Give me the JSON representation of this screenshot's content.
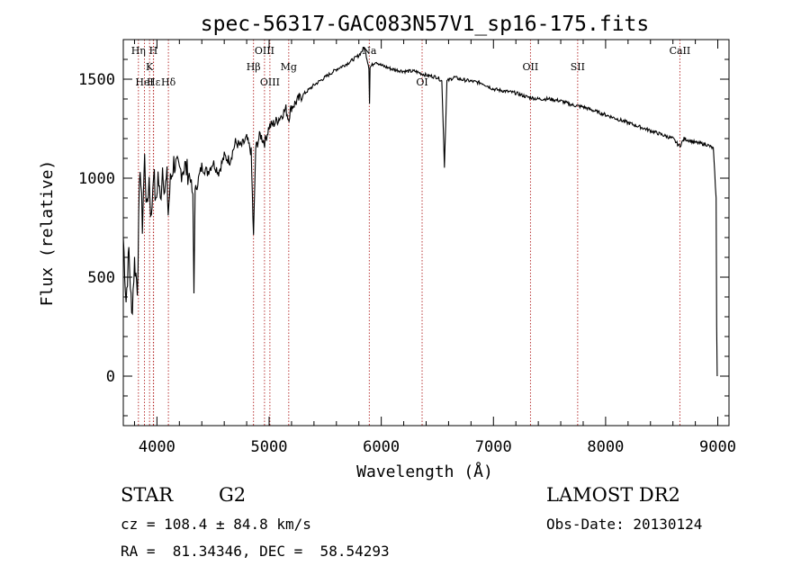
{
  "chart_data": {
    "type": "line",
    "title": "spec-56317-GAC083N57V1_sp16-175.fits",
    "xlabel": "Wavelength (Å)",
    "ylabel": "Flux (relative)",
    "xlim": [
      3700,
      9100
    ],
    "ylim": [
      -250,
      1700
    ],
    "xticks": [
      4000,
      5000,
      6000,
      7000,
      8000,
      9000
    ],
    "yticks": [
      0,
      500,
      1000,
      1500
    ],
    "grid": false,
    "line_color": "#000000",
    "marker_color": "#b22222",
    "series": [
      {
        "points": [
          [
            3700,
            700
          ],
          [
            3725,
            380
          ],
          [
            3750,
            640
          ],
          [
            3775,
            300
          ],
          [
            3800,
            580
          ],
          [
            3825,
            450
          ],
          [
            3850,
            1080
          ],
          [
            3870,
            760
          ],
          [
            3890,
            1100
          ],
          [
            3910,
            830
          ],
          [
            3930,
            1000
          ],
          [
            3950,
            780
          ],
          [
            3970,
            1060
          ],
          [
            3990,
            850
          ],
          [
            4010,
            1020
          ],
          [
            4030,
            880
          ],
          [
            4050,
            1060
          ],
          [
            4070,
            940
          ],
          [
            4090,
            1000
          ],
          [
            4100,
            820
          ],
          [
            4120,
            980
          ],
          [
            4150,
            1080
          ],
          [
            4200,
            1030
          ],
          [
            4250,
            1060
          ],
          [
            4300,
            1000
          ],
          [
            4320,
            900
          ],
          [
            4330,
            420
          ],
          [
            4340,
            930
          ],
          [
            4400,
            1060
          ],
          [
            4450,
            1030
          ],
          [
            4500,
            1080
          ],
          [
            4550,
            1030
          ],
          [
            4600,
            1110
          ],
          [
            4650,
            1090
          ],
          [
            4700,
            1180
          ],
          [
            4750,
            1160
          ],
          [
            4800,
            1200
          ],
          [
            4840,
            1130
          ],
          [
            4861,
            700
          ],
          [
            4880,
            1150
          ],
          [
            4920,
            1220
          ],
          [
            4960,
            1180
          ],
          [
            5000,
            1260
          ],
          [
            5050,
            1280
          ],
          [
            5100,
            1310
          ],
          [
            5150,
            1350
          ],
          [
            5172,
            1300
          ],
          [
            5200,
            1360
          ],
          [
            5300,
            1420
          ],
          [
            5400,
            1470
          ],
          [
            5500,
            1510
          ],
          [
            5600,
            1550
          ],
          [
            5700,
            1580
          ],
          [
            5800,
            1620
          ],
          [
            5850,
            1660
          ],
          [
            5890,
            1560
          ],
          [
            5895,
            1380
          ],
          [
            5900,
            1560
          ],
          [
            5950,
            1590
          ],
          [
            6000,
            1570
          ],
          [
            6100,
            1550
          ],
          [
            6200,
            1540
          ],
          [
            6300,
            1540
          ],
          [
            6400,
            1520
          ],
          [
            6500,
            1510
          ],
          [
            6540,
            1490
          ],
          [
            6563,
            1060
          ],
          [
            6585,
            1490
          ],
          [
            6650,
            1510
          ],
          [
            6700,
            1500
          ],
          [
            6800,
            1490
          ],
          [
            6900,
            1480
          ],
          [
            7000,
            1450
          ],
          [
            7100,
            1440
          ],
          [
            7200,
            1430
          ],
          [
            7300,
            1410
          ],
          [
            7400,
            1400
          ],
          [
            7500,
            1400
          ],
          [
            7600,
            1390
          ],
          [
            7700,
            1370
          ],
          [
            7800,
            1360
          ],
          [
            7900,
            1340
          ],
          [
            8000,
            1320
          ],
          [
            8100,
            1300
          ],
          [
            8200,
            1280
          ],
          [
            8300,
            1260
          ],
          [
            8400,
            1240
          ],
          [
            8500,
            1220
          ],
          [
            8600,
            1200
          ],
          [
            8660,
            1160
          ],
          [
            8700,
            1200
          ],
          [
            8800,
            1180
          ],
          [
            8900,
            1170
          ],
          [
            8960,
            1150
          ],
          [
            8985,
            900
          ],
          [
            8990,
            250
          ],
          [
            8995,
            0
          ]
        ]
      }
    ],
    "line_markers": [
      {
        "label": "Hη",
        "wavelength": 3835,
        "label_row": 0
      },
      {
        "label": "H",
        "wavelength": 3968,
        "label_row": 0
      },
      {
        "label": "K",
        "wavelength": 3934,
        "label_row": 1
      },
      {
        "label": "HeI",
        "wavelength": 3889,
        "label_row": 2
      },
      {
        "label": "Hε",
        "wavelength": 3970,
        "label_row": 2
      },
      {
        "label": "Hδ",
        "wavelength": 4102,
        "label_row": 2
      },
      {
        "label": "OIII",
        "wavelength": 4959,
        "label_row": 0
      },
      {
        "label": "Hβ",
        "wavelength": 4861,
        "label_row": 1
      },
      {
        "label": "OIII",
        "wavelength": 5007,
        "label_row": 2
      },
      {
        "label": "Mg",
        "wavelength": 5175,
        "label_row": 1
      },
      {
        "label": "Na",
        "wavelength": 5893,
        "label_row": 0
      },
      {
        "label": "OI",
        "wavelength": 6364,
        "label_row": 2
      },
      {
        "label": "OII",
        "wavelength": 7330,
        "label_row": 1
      },
      {
        "label": "SII",
        "wavelength": 7751,
        "label_row": 1
      },
      {
        "label": "CaII",
        "wavelength": 8662,
        "label_row": 0
      }
    ]
  },
  "info": {
    "object_type": "STAR",
    "subclass": "G2",
    "survey": "LAMOST DR2",
    "redshift_line": "cz = 108.4 ± 84.8 km/s",
    "obs_date_line": "Obs-Date: 20130124",
    "coords_line": "RA =  81.34346, DEC =  58.54293"
  }
}
